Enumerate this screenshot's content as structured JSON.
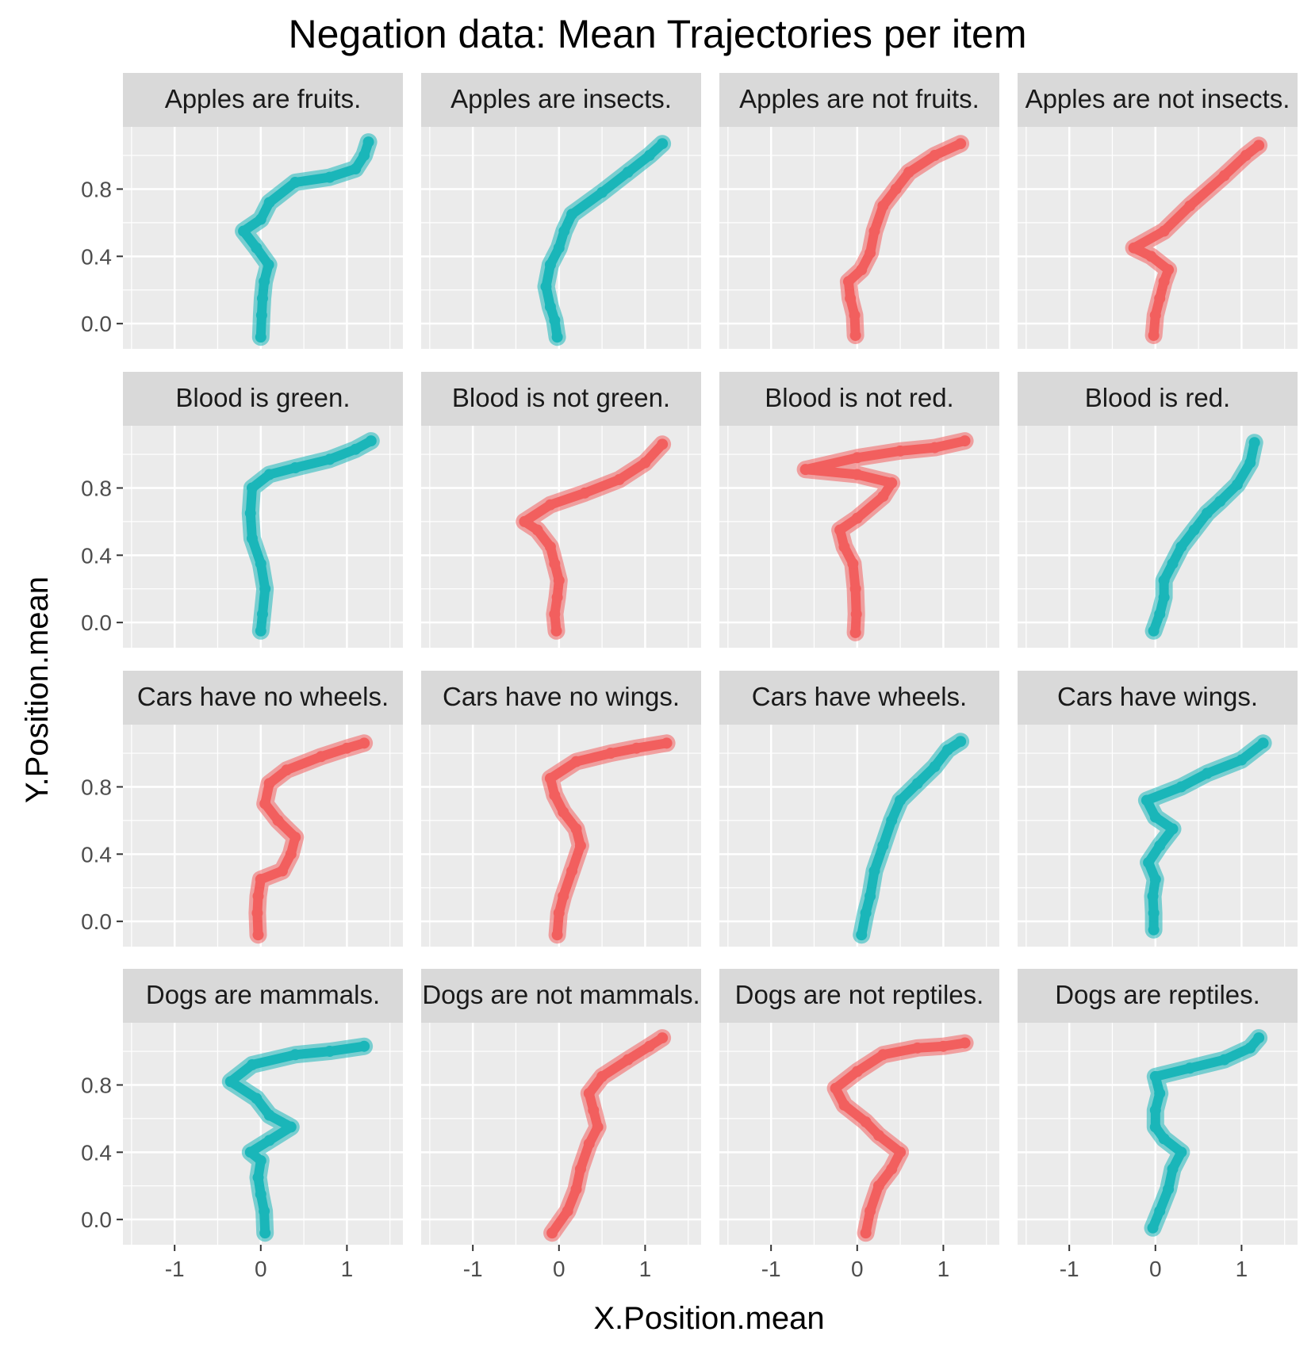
{
  "chart_data": {
    "type": "line",
    "title": "Negation data: Mean Trajectories per item",
    "xlabel": "X.Position.mean",
    "ylabel": "Y.Position.mean",
    "xlim": [
      -1.6,
      1.65
    ],
    "ylim": [
      -0.15,
      1.17
    ],
    "x_ticks": [
      -1,
      0,
      1
    ],
    "x_tick_labels": [
      "-1",
      "0",
      "1"
    ],
    "y_ticks": [
      0.0,
      0.4,
      0.8
    ],
    "y_tick_labels": [
      "0.0",
      "0.4",
      "0.8"
    ],
    "grid": true,
    "legend": "none",
    "facet_cols": 4,
    "colors": {
      "teal": "#1AB6B9",
      "red": "#F25F5E",
      "panel": "#EBEBEB",
      "strip": "#D9D9D9",
      "grid": "#FFFFFF"
    },
    "panels": [
      {
        "label": "Apples are fruits.",
        "color": "teal",
        "points": [
          [
            0.0,
            -0.08
          ],
          [
            0.01,
            0.05
          ],
          [
            0.02,
            0.15
          ],
          [
            0.04,
            0.25
          ],
          [
            0.09,
            0.35
          ],
          [
            -0.05,
            0.45
          ],
          [
            -0.2,
            0.55
          ],
          [
            0.0,
            0.62
          ],
          [
            0.1,
            0.72
          ],
          [
            0.4,
            0.84
          ],
          [
            0.8,
            0.87
          ],
          [
            1.1,
            0.92
          ],
          [
            1.2,
            1.0
          ],
          [
            1.25,
            1.08
          ]
        ]
      },
      {
        "label": "Apples are insects.",
        "color": "teal",
        "points": [
          [
            -0.02,
            -0.08
          ],
          [
            -0.05,
            0.02
          ],
          [
            -0.1,
            0.1
          ],
          [
            -0.15,
            0.22
          ],
          [
            -0.1,
            0.35
          ],
          [
            0.0,
            0.45
          ],
          [
            0.06,
            0.55
          ],
          [
            0.15,
            0.65
          ],
          [
            0.5,
            0.78
          ],
          [
            0.8,
            0.9
          ],
          [
            1.05,
            1.0
          ],
          [
            1.2,
            1.07
          ]
        ]
      },
      {
        "label": "Apples are not fruits.",
        "color": "red",
        "points": [
          [
            -0.02,
            -0.07
          ],
          [
            -0.03,
            0.05
          ],
          [
            -0.08,
            0.15
          ],
          [
            -0.1,
            0.25
          ],
          [
            0.05,
            0.32
          ],
          [
            0.15,
            0.42
          ],
          [
            0.2,
            0.55
          ],
          [
            0.3,
            0.7
          ],
          [
            0.45,
            0.8
          ],
          [
            0.6,
            0.9
          ],
          [
            0.9,
            1.0
          ],
          [
            1.2,
            1.07
          ]
        ]
      },
      {
        "label": "Apples are not insects.",
        "color": "red",
        "points": [
          [
            -0.02,
            -0.07
          ],
          [
            0.0,
            0.05
          ],
          [
            0.05,
            0.15
          ],
          [
            0.1,
            0.25
          ],
          [
            0.15,
            0.32
          ],
          [
            -0.05,
            0.4
          ],
          [
            -0.25,
            0.45
          ],
          [
            0.1,
            0.55
          ],
          [
            0.4,
            0.7
          ],
          [
            0.8,
            0.88
          ],
          [
            1.05,
            1.0
          ],
          [
            1.2,
            1.06
          ]
        ]
      },
      {
        "label": "Blood is green.",
        "color": "teal",
        "points": [
          [
            0.0,
            -0.05
          ],
          [
            0.02,
            0.05
          ],
          [
            0.05,
            0.2
          ],
          [
            0.0,
            0.35
          ],
          [
            -0.1,
            0.5
          ],
          [
            -0.12,
            0.65
          ],
          [
            -0.1,
            0.8
          ],
          [
            0.1,
            0.88
          ],
          [
            0.4,
            0.92
          ],
          [
            0.8,
            0.97
          ],
          [
            1.1,
            1.03
          ],
          [
            1.28,
            1.08
          ]
        ]
      },
      {
        "label": "Blood is not green.",
        "color": "red",
        "points": [
          [
            -0.03,
            -0.05
          ],
          [
            -0.05,
            0.05
          ],
          [
            -0.02,
            0.15
          ],
          [
            0.0,
            0.25
          ],
          [
            -0.05,
            0.35
          ],
          [
            -0.1,
            0.45
          ],
          [
            -0.25,
            0.55
          ],
          [
            -0.4,
            0.6
          ],
          [
            -0.1,
            0.7
          ],
          [
            0.3,
            0.77
          ],
          [
            0.7,
            0.85
          ],
          [
            1.0,
            0.95
          ],
          [
            1.2,
            1.06
          ]
        ]
      },
      {
        "label": "Blood is not red.",
        "color": "red",
        "points": [
          [
            -0.02,
            -0.06
          ],
          [
            -0.01,
            0.05
          ],
          [
            -0.02,
            0.2
          ],
          [
            -0.05,
            0.35
          ],
          [
            -0.15,
            0.45
          ],
          [
            -0.2,
            0.55
          ],
          [
            0.0,
            0.62
          ],
          [
            0.3,
            0.75
          ],
          [
            0.4,
            0.83
          ],
          [
            0.0,
            0.88
          ],
          [
            -0.6,
            0.91
          ],
          [
            0.0,
            0.98
          ],
          [
            0.5,
            1.02
          ],
          [
            0.9,
            1.04
          ],
          [
            1.25,
            1.08
          ]
        ]
      },
      {
        "label": "Blood is red.",
        "color": "teal",
        "points": [
          [
            -0.02,
            -0.05
          ],
          [
            0.05,
            0.05
          ],
          [
            0.1,
            0.15
          ],
          [
            0.1,
            0.25
          ],
          [
            0.2,
            0.35
          ],
          [
            0.3,
            0.45
          ],
          [
            0.45,
            0.55
          ],
          [
            0.6,
            0.65
          ],
          [
            0.75,
            0.72
          ],
          [
            0.95,
            0.82
          ],
          [
            1.1,
            0.95
          ],
          [
            1.15,
            1.07
          ]
        ]
      },
      {
        "label": "Cars have no wheels.",
        "color": "red",
        "points": [
          [
            -0.03,
            -0.08
          ],
          [
            -0.04,
            0.05
          ],
          [
            -0.03,
            0.15
          ],
          [
            0.0,
            0.25
          ],
          [
            0.25,
            0.3
          ],
          [
            0.35,
            0.4
          ],
          [
            0.4,
            0.5
          ],
          [
            0.2,
            0.6
          ],
          [
            0.05,
            0.7
          ],
          [
            0.1,
            0.82
          ],
          [
            0.3,
            0.9
          ],
          [
            0.7,
            0.98
          ],
          [
            1.0,
            1.03
          ],
          [
            1.2,
            1.06
          ]
        ]
      },
      {
        "label": "Cars have no wings.",
        "color": "red",
        "points": [
          [
            -0.02,
            -0.08
          ],
          [
            0.0,
            0.05
          ],
          [
            0.05,
            0.15
          ],
          [
            0.15,
            0.3
          ],
          [
            0.25,
            0.45
          ],
          [
            0.2,
            0.55
          ],
          [
            0.05,
            0.65
          ],
          [
            -0.05,
            0.75
          ],
          [
            -0.1,
            0.85
          ],
          [
            0.2,
            0.95
          ],
          [
            0.6,
            1.0
          ],
          [
            0.9,
            1.03
          ],
          [
            1.25,
            1.06
          ]
        ]
      },
      {
        "label": "Cars have wheels.",
        "color": "teal",
        "points": [
          [
            0.05,
            -0.08
          ],
          [
            0.1,
            0.05
          ],
          [
            0.15,
            0.15
          ],
          [
            0.2,
            0.3
          ],
          [
            0.3,
            0.45
          ],
          [
            0.4,
            0.6
          ],
          [
            0.5,
            0.72
          ],
          [
            0.7,
            0.82
          ],
          [
            0.9,
            0.92
          ],
          [
            1.05,
            1.02
          ],
          [
            1.2,
            1.07
          ]
        ]
      },
      {
        "label": "Cars have wings.",
        "color": "teal",
        "points": [
          [
            -0.02,
            -0.05
          ],
          [
            -0.02,
            0.05
          ],
          [
            -0.03,
            0.15
          ],
          [
            0.0,
            0.25
          ],
          [
            -0.08,
            0.35
          ],
          [
            0.05,
            0.45
          ],
          [
            0.2,
            0.55
          ],
          [
            0.0,
            0.62
          ],
          [
            -0.1,
            0.72
          ],
          [
            0.3,
            0.8
          ],
          [
            0.6,
            0.88
          ],
          [
            1.0,
            0.96
          ],
          [
            1.25,
            1.06
          ]
        ]
      },
      {
        "label": "Dogs are mammals.",
        "color": "teal",
        "points": [
          [
            0.05,
            -0.08
          ],
          [
            0.04,
            0.05
          ],
          [
            0.0,
            0.15
          ],
          [
            -0.03,
            0.25
          ],
          [
            0.0,
            0.35
          ],
          [
            -0.12,
            0.4
          ],
          [
            0.1,
            0.47
          ],
          [
            0.35,
            0.55
          ],
          [
            0.1,
            0.62
          ],
          [
            -0.05,
            0.72
          ],
          [
            -0.35,
            0.82
          ],
          [
            -0.1,
            0.92
          ],
          [
            0.4,
            0.98
          ],
          [
            0.8,
            1.0
          ],
          [
            1.2,
            1.03
          ]
        ]
      },
      {
        "label": "Dogs are not mammals.",
        "color": "red",
        "points": [
          [
            -0.08,
            -0.08
          ],
          [
            0.1,
            0.05
          ],
          [
            0.2,
            0.18
          ],
          [
            0.25,
            0.3
          ],
          [
            0.35,
            0.45
          ],
          [
            0.45,
            0.55
          ],
          [
            0.4,
            0.65
          ],
          [
            0.35,
            0.75
          ],
          [
            0.5,
            0.85
          ],
          [
            0.8,
            0.95
          ],
          [
            1.05,
            1.03
          ],
          [
            1.2,
            1.08
          ]
        ]
      },
      {
        "label": "Dogs are not reptiles.",
        "color": "red",
        "points": [
          [
            0.1,
            -0.08
          ],
          [
            0.15,
            0.05
          ],
          [
            0.25,
            0.2
          ],
          [
            0.4,
            0.3
          ],
          [
            0.5,
            0.4
          ],
          [
            0.25,
            0.5
          ],
          [
            0.1,
            0.58
          ],
          [
            -0.15,
            0.68
          ],
          [
            -0.25,
            0.78
          ],
          [
            0.0,
            0.88
          ],
          [
            0.3,
            0.98
          ],
          [
            0.7,
            1.02
          ],
          [
            1.0,
            1.03
          ],
          [
            1.25,
            1.05
          ]
        ]
      },
      {
        "label": "Dogs are reptiles.",
        "color": "teal",
        "points": [
          [
            -0.03,
            -0.05
          ],
          [
            0.05,
            0.05
          ],
          [
            0.15,
            0.18
          ],
          [
            0.2,
            0.3
          ],
          [
            0.3,
            0.4
          ],
          [
            0.1,
            0.48
          ],
          [
            0.0,
            0.55
          ],
          [
            0.0,
            0.65
          ],
          [
            0.05,
            0.75
          ],
          [
            0.0,
            0.85
          ],
          [
            0.4,
            0.9
          ],
          [
            0.8,
            0.95
          ],
          [
            1.1,
            1.02
          ],
          [
            1.2,
            1.08
          ]
        ]
      }
    ]
  }
}
